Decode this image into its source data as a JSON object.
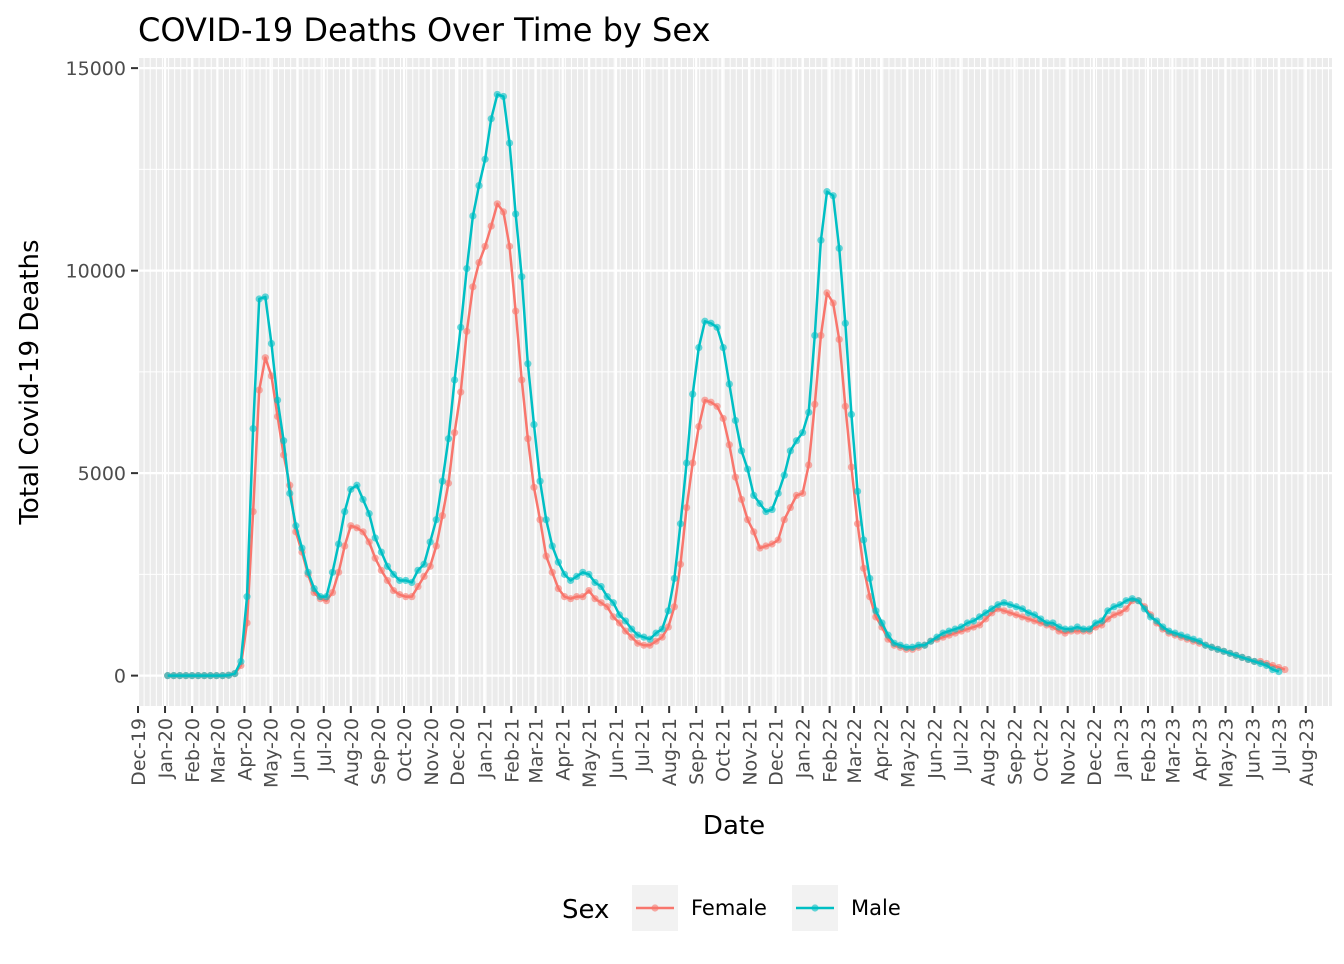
{
  "chart_data": {
    "type": "line",
    "title": "COVID-19 Deaths Over Time by Sex",
    "xlabel": "Date",
    "ylabel": "Total Covid-19 Deaths",
    "ylim": [
      -750,
      15250
    ],
    "y_ticks": [
      0,
      5000,
      10000,
      15000
    ],
    "x_range": [
      "2019-12-01",
      "2023-08-31"
    ],
    "x_tick_labels": [
      "Dec-19",
      "Jan-20",
      "Feb-20",
      "Mar-20",
      "Apr-20",
      "May-20",
      "Jun-20",
      "Jul-20",
      "Aug-20",
      "Sep-20",
      "Oct-20",
      "Nov-20",
      "Dec-20",
      "Jan-21",
      "Feb-21",
      "Mar-21",
      "Apr-21",
      "May-21",
      "Jun-21",
      "Jul-21",
      "Aug-21",
      "Sep-21",
      "Oct-21",
      "Nov-21",
      "Dec-21",
      "Jan-22",
      "Feb-22",
      "Mar-22",
      "Apr-22",
      "May-22",
      "Jun-22",
      "Jul-22",
      "Aug-22",
      "Sep-22",
      "Oct-22",
      "Nov-22",
      "Dec-22",
      "Jan-23",
      "Feb-23",
      "Mar-23",
      "Apr-23",
      "May-23",
      "Jun-23",
      "Jul-23",
      "Aug-23"
    ],
    "grid": true,
    "legend": {
      "title": "Sex",
      "position": "bottom"
    },
    "x_start": "2020-01-04",
    "x_step_days": 7,
    "series": [
      {
        "name": "Female",
        "color": "#F8766D",
        "values": [
          0,
          0,
          0,
          0,
          0,
          0,
          0,
          0,
          0,
          0,
          10,
          50,
          250,
          1300,
          4050,
          7050,
          7850,
          7400,
          6400,
          5450,
          4700,
          3550,
          3050,
          2500,
          2050,
          1900,
          1850,
          2050,
          2550,
          3200,
          3700,
          3650,
          3550,
          3300,
          2900,
          2600,
          2350,
          2100,
          2000,
          1950,
          1950,
          2200,
          2450,
          2700,
          3200,
          3950,
          4750,
          6000,
          7000,
          8500,
          9600,
          10200,
          10600,
          11100,
          11650,
          11450,
          10600,
          9000,
          7300,
          5850,
          4650,
          3850,
          2950,
          2550,
          2150,
          1950,
          1900,
          1950,
          1950,
          2100,
          1900,
          1800,
          1700,
          1450,
          1300,
          1100,
          950,
          800,
          750,
          750,
          850,
          950,
          1200,
          1700,
          2750,
          4150,
          5250,
          6150,
          6800,
          6750,
          6650,
          6350,
          5700,
          4900,
          4350,
          3850,
          3550,
          3150,
          3200,
          3250,
          3350,
          3850,
          4150,
          4450,
          4500,
          5200,
          6700,
          8400,
          9450,
          9200,
          8300,
          6650,
          5150,
          3750,
          2650,
          1950,
          1450,
          1200,
          900,
          750,
          700,
          650,
          650,
          700,
          750,
          850,
          900,
          950,
          1000,
          1050,
          1100,
          1150,
          1200,
          1250,
          1400,
          1550,
          1650,
          1600,
          1550,
          1500,
          1450,
          1400,
          1350,
          1300,
          1250,
          1200,
          1100,
          1050,
          1100,
          1100,
          1100,
          1100,
          1200,
          1250,
          1400,
          1500,
          1550,
          1650,
          1850,
          1850,
          1700,
          1500,
          1300,
          1150,
          1050,
          1000,
          950,
          900,
          850,
          800,
          750,
          700,
          650,
          600,
          550,
          500,
          450,
          400,
          350,
          350,
          300,
          250,
          200,
          150
        ]
      },
      {
        "name": "Male",
        "color": "#00BFC4",
        "values": [
          0,
          0,
          0,
          0,
          0,
          0,
          0,
          0,
          0,
          0,
          10,
          50,
          350,
          1950,
          6100,
          9300,
          9350,
          8200,
          6800,
          5800,
          4500,
          3700,
          3150,
          2550,
          2150,
          1950,
          1950,
          2550,
          3250,
          4050,
          4600,
          4700,
          4350,
          4000,
          3400,
          3050,
          2700,
          2500,
          2350,
          2350,
          2300,
          2600,
          2750,
          3300,
          3850,
          4800,
          5850,
          7300,
          8600,
          10050,
          11350,
          12100,
          12750,
          13750,
          14350,
          14300,
          13150,
          11400,
          9850,
          7700,
          6200,
          4800,
          3850,
          3200,
          2800,
          2500,
          2350,
          2450,
          2550,
          2500,
          2300,
          2200,
          1950,
          1800,
          1500,
          1350,
          1150,
          1000,
          950,
          900,
          1050,
          1150,
          1600,
          2400,
          3750,
          5250,
          6950,
          8100,
          8750,
          8700,
          8600,
          8100,
          7200,
          6300,
          5550,
          5100,
          4450,
          4250,
          4050,
          4100,
          4500,
          4950,
          5550,
          5800,
          6000,
          6500,
          8400,
          10750,
          11950,
          11850,
          10550,
          8700,
          6450,
          4550,
          3350,
          2400,
          1600,
          1300,
          1000,
          800,
          750,
          700,
          700,
          750,
          750,
          850,
          950,
          1050,
          1100,
          1150,
          1200,
          1300,
          1350,
          1450,
          1550,
          1650,
          1750,
          1800,
          1750,
          1700,
          1650,
          1550,
          1500,
          1400,
          1300,
          1300,
          1200,
          1150,
          1150,
          1200,
          1150,
          1150,
          1300,
          1350,
          1600,
          1700,
          1750,
          1850,
          1900,
          1850,
          1650,
          1450,
          1350,
          1200,
          1100,
          1050,
          1000,
          950,
          900,
          850,
          750,
          700,
          650,
          600,
          550,
          500,
          450,
          400,
          350,
          300,
          250,
          150,
          100
        ]
      }
    ]
  }
}
